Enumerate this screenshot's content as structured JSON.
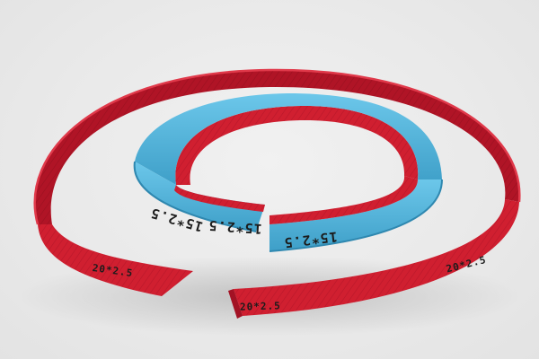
{
  "product_photo": {
    "large_band": {
      "color": "#d21f2f",
      "markings": [
        "20*2.5",
        "20*2.5",
        "20*2.5"
      ]
    },
    "small_band": {
      "outer_color": "#4fb6dc",
      "inner_color": "#d21f2f",
      "markings": [
        "15*2.5",
        "15*2.5",
        "15*2.5"
      ]
    }
  }
}
